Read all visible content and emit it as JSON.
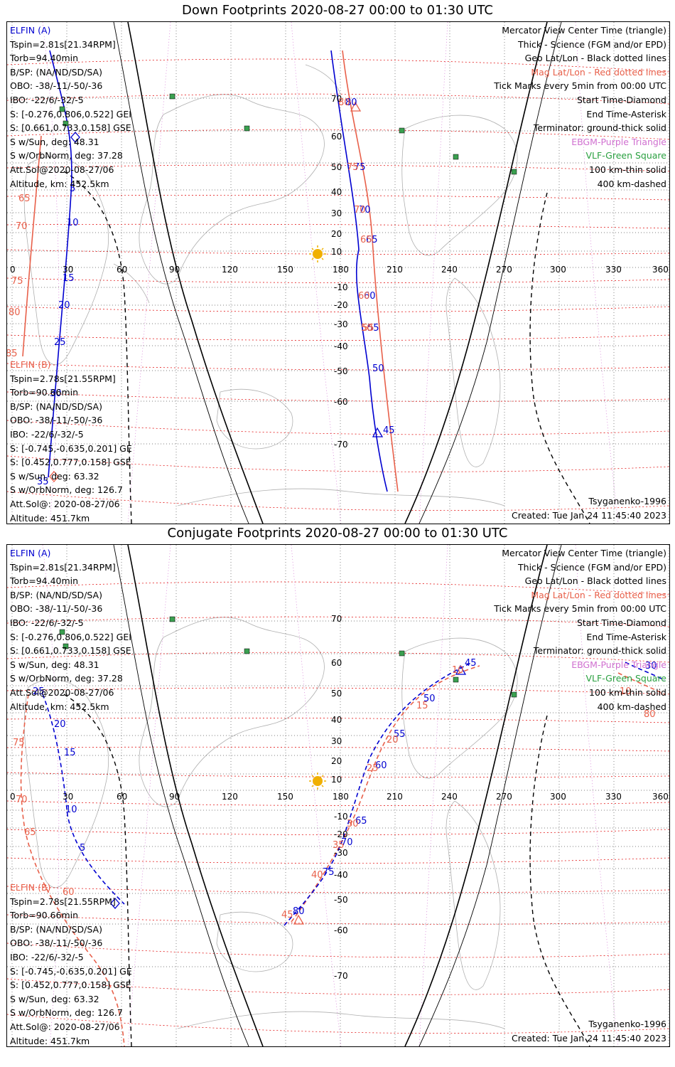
{
  "panels": [
    {
      "title": "Down Footprints 2020-08-27 00:00 to 01:30 UTC",
      "elfin_a": {
        "header": "ELFIN (A)",
        "lines": [
          "Tspin=2.81s[21.34RPM]",
          "Torb=94.40min",
          "B/SP: (NA/ND/SD/SA)",
          "OBO: -38/-11/-50/-36",
          "IBO: -22/6/-32/-5",
          "S: [-0.276,0.806,0.522] GEI",
          "S: [0.661,0.733,0.158] GSE",
          "S w/Sun, deg: 48.31",
          "S w/OrbNorm, deg: 37.28",
          "Att.Sol@2020-08-27/06",
          "Altitude, km: 452.5km"
        ]
      },
      "elfin_b": {
        "header": "ELFIN (B)",
        "lines": [
          "Tspin=2.78s[21.55RPM]",
          "Torb=90.66min",
          "B/SP: (NA/ND/SD/SA)",
          "OBO: -38/-11/-50/-36",
          "IBO: -22/6/-32/-5",
          "S: [-0.745,-0.635,0.201] GE",
          "S: [0.452,0.777,0.158] GSE",
          "S w/Sun, deg: 63.32",
          "S w/OrbNorm, deg: 126.7",
          "Att.Sol@: 2020-08-27/06",
          "Altitude: 451.7km"
        ]
      },
      "legend": [
        {
          "text": "Mercator View Center Time (triangle)",
          "color": "blk"
        },
        {
          "text": "Thick - Science (FGM and/or EPD)",
          "color": "blk"
        },
        {
          "text": "Geo Lat/Lon - Black dotted lines",
          "color": "blk"
        },
        {
          "text": "Mag Lat/Lon - Red dotted lines",
          "color": "red"
        },
        {
          "text": "Tick Marks every 5min from 00:00 UTC",
          "color": "blk"
        },
        {
          "text": "Start Time-Diamond",
          "color": "blk"
        },
        {
          "text": "End Time-Asterisk",
          "color": "blk"
        },
        {
          "text": "Terminator: ground-thick solid",
          "color": "blk"
        },
        {
          "text": "EBGM-Purple Triangle",
          "color": "magenta"
        },
        {
          "text": "VLF-Green Square",
          "color": "green"
        },
        {
          "text": "100 km-thin solid",
          "color": "blk"
        },
        {
          "text": "400 km-dashed",
          "color": "blk"
        }
      ],
      "model": "Tsyganenko-1996",
      "created": "Created: Tue Jan 24 11:45:40 2023",
      "lon_labels": [
        "0",
        "30",
        "60",
        "90",
        "120",
        "150",
        "180",
        "210",
        "240",
        "270",
        "300",
        "330",
        "360"
      ],
      "lat_labels": [
        "70",
        "60",
        "50",
        "40",
        "30",
        "20",
        "10",
        "-10",
        "-20",
        "-30",
        "-40",
        "-50",
        "-60",
        "-70"
      ],
      "blue_ticks": [
        "5",
        "10",
        "15",
        "20",
        "25",
        "30",
        "35",
        "45",
        "50",
        "55",
        "60",
        "65",
        "70",
        "75",
        "80"
      ],
      "red_ticks": [
        "65",
        "70",
        "75",
        "80",
        "85",
        "45",
        "50",
        "55",
        "60",
        "65",
        "70",
        "75",
        "80"
      ]
    },
    {
      "title": "Conjugate Footprints 2020-08-27 00:00 to 01:30 UTC",
      "elfin_a": {
        "header": "ELFIN (A)",
        "lines": [
          "Tspin=2.81s[21.34RPM]",
          "Torb=94.40min",
          "B/SP: (NA/ND/SD/SA)",
          "OBO: -38/-11/-50/-36",
          "IBO: -22/6/-32/-5",
          "S: [-0.276,0.806,0.522] GEI",
          "S: [0.661,0.733,0.158] GSE",
          "S w/Sun, deg: 48.31",
          "S w/OrbNorm, deg: 37.28",
          "Att.Sol@2020-08-27/06",
          "Altitude, km: 452.5km"
        ]
      },
      "elfin_b": {
        "header": "ELFIN (B)",
        "lines": [
          "Tspin=2.78s[21.55RPM]",
          "Torb=90.66min",
          "B/SP: (NA/ND/SD/SA)",
          "OBO: -38/-11/-50/-36",
          "IBO: -22/6/-32/-5",
          "S: [-0.745,-0.635,0.201] GE",
          "S: [0.452,0.777,0.158] GSE",
          "S w/Sun, deg: 63.32",
          "S w/OrbNorm, deg: 126.7",
          "Att.Sol@: 2020-08-27/06",
          "Altitude: 451.7km"
        ]
      },
      "legend": [
        {
          "text": "Mercator View Center Time (triangle)",
          "color": "blk"
        },
        {
          "text": "Thick - Science (FGM and/or EPD)",
          "color": "blk"
        },
        {
          "text": "Geo Lat/Lon - Black dotted lines",
          "color": "blk"
        },
        {
          "text": "Mag Lat/Lon - Red dotted lines",
          "color": "red"
        },
        {
          "text": "Tick Marks every 5min from 00:00 UTC",
          "color": "blk"
        },
        {
          "text": "Start Time-Diamond",
          "color": "blk"
        },
        {
          "text": "End Time-Asterisk",
          "color": "blk"
        },
        {
          "text": "Terminator: ground-thick solid",
          "color": "blk"
        },
        {
          "text": "EBGM-Purple Triangle",
          "color": "magenta"
        },
        {
          "text": "VLF-Green Square",
          "color": "green"
        },
        {
          "text": "100 km-thin solid",
          "color": "blk"
        },
        {
          "text": "400 km-dashed",
          "color": "blk"
        }
      ],
      "model": "Tsyganenko-1996",
      "created": "Created: Tue Jan 24 11:45:40 2023",
      "lon_labels": [
        "0",
        "30",
        "60",
        "90",
        "120",
        "150",
        "180",
        "210",
        "240",
        "270",
        "300",
        "330",
        "360"
      ],
      "lat_labels": [
        "70",
        "60",
        "50",
        "40",
        "30",
        "20",
        "10",
        "-10",
        "-20",
        "-30",
        "-40",
        "-50",
        "-60",
        "-70"
      ],
      "blue_ticks": [
        "25",
        "20",
        "15",
        "10",
        "5",
        "80",
        "75",
        "70",
        "65",
        "60",
        "55",
        "50",
        "45",
        "30"
      ],
      "red_ticks": [
        "75",
        "70",
        "65",
        "60",
        "45",
        "40",
        "35",
        "30",
        "25",
        "20",
        "15",
        "10",
        "10",
        "80"
      ]
    }
  ],
  "colors": {
    "elfin_a": "#0000d0",
    "elfin_b": "#e8604a",
    "mag_grid": "#e00000",
    "geo_grid": "#333333",
    "sun": "#f0b000",
    "vlf": "#3aa050"
  }
}
